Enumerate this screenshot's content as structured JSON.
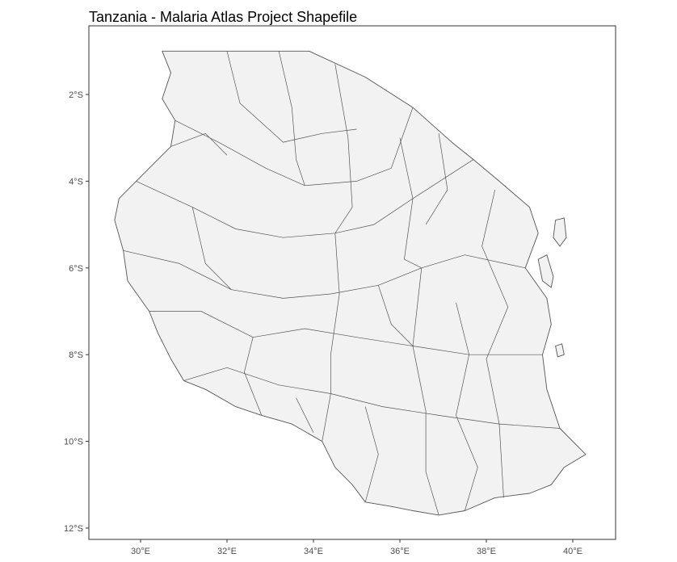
{
  "title": "Tanzania - Malaria Atlas Project Shapefile",
  "axes": {
    "x_ticks": [
      {
        "value": 30,
        "label": "30°E"
      },
      {
        "value": 32,
        "label": "32°E"
      },
      {
        "value": 34,
        "label": "34°E"
      },
      {
        "value": 36,
        "label": "36°E"
      },
      {
        "value": 38,
        "label": "38°E"
      },
      {
        "value": 40,
        "label": "40°E"
      }
    ],
    "y_ticks": [
      {
        "value": -2,
        "label": "2°S"
      },
      {
        "value": -4,
        "label": "4°S"
      },
      {
        "value": -6,
        "label": "6°S"
      },
      {
        "value": -8,
        "label": "8°S"
      },
      {
        "value": -10,
        "label": "10°S"
      },
      {
        "value": -12,
        "label": "12°S"
      }
    ],
    "xlim": [
      28.8,
      41.0
    ],
    "ylim": [
      -12.2,
      -0.4
    ]
  },
  "map": {
    "region": "Tanzania",
    "fill": "#f2f2f2",
    "stroke": "#555555",
    "panel_border": "#333333",
    "outline": [
      [
        30.5,
        -1.0
      ],
      [
        31.4,
        -1.0
      ],
      [
        33.9,
        -1.0
      ],
      [
        35.2,
        -1.6
      ],
      [
        36.3,
        -2.3
      ],
      [
        37.2,
        -3.1
      ],
      [
        37.7,
        -3.5
      ],
      [
        38.3,
        -4.0
      ],
      [
        39.0,
        -4.6
      ],
      [
        39.2,
        -5.2
      ],
      [
        38.9,
        -6.0
      ],
      [
        39.4,
        -6.7
      ],
      [
        39.5,
        -7.3
      ],
      [
        39.3,
        -8.0
      ],
      [
        39.4,
        -8.8
      ],
      [
        39.7,
        -9.7
      ],
      [
        40.3,
        -10.3
      ],
      [
        39.8,
        -10.6
      ],
      [
        39.5,
        -11.0
      ],
      [
        39.0,
        -11.2
      ],
      [
        38.2,
        -11.3
      ],
      [
        37.5,
        -11.6
      ],
      [
        36.9,
        -11.7
      ],
      [
        36.3,
        -11.6
      ],
      [
        35.8,
        -11.5
      ],
      [
        35.2,
        -11.4
      ],
      [
        34.9,
        -11.0
      ],
      [
        34.5,
        -10.6
      ],
      [
        34.2,
        -10.0
      ],
      [
        33.5,
        -9.6
      ],
      [
        32.8,
        -9.4
      ],
      [
        32.2,
        -9.2
      ],
      [
        31.5,
        -8.8
      ],
      [
        31.0,
        -8.6
      ],
      [
        30.7,
        -8.1
      ],
      [
        30.4,
        -7.5
      ],
      [
        30.2,
        -7.0
      ],
      [
        29.7,
        -6.3
      ],
      [
        29.6,
        -5.6
      ],
      [
        29.4,
        -4.9
      ],
      [
        29.5,
        -4.4
      ],
      [
        29.9,
        -4.0
      ],
      [
        30.3,
        -3.6
      ],
      [
        30.7,
        -3.2
      ],
      [
        30.8,
        -2.6
      ],
      [
        30.5,
        -2.1
      ],
      [
        30.7,
        -1.5
      ]
    ],
    "borders": [
      [
        [
          32.0,
          -1.0
        ],
        [
          32.3,
          -2.2
        ],
        [
          33.3,
          -3.1
        ],
        [
          34.2,
          -2.9
        ],
        [
          35.0,
          -2.8
        ]
      ],
      [
        [
          30.8,
          -2.6
        ],
        [
          31.8,
          -3.1
        ],
        [
          32.9,
          -3.7
        ],
        [
          33.8,
          -4.1
        ],
        [
          35.0,
          -4.0
        ],
        [
          35.8,
          -3.7
        ],
        [
          36.3,
          -2.3
        ]
      ],
      [
        [
          29.9,
          -4.0
        ],
        [
          31.2,
          -4.6
        ],
        [
          32.2,
          -5.1
        ],
        [
          33.3,
          -5.3
        ],
        [
          34.5,
          -5.2
        ],
        [
          35.4,
          -5.0
        ],
        [
          36.3,
          -4.4
        ],
        [
          37.7,
          -3.5
        ]
      ],
      [
        [
          29.6,
          -5.6
        ],
        [
          30.9,
          -5.9
        ],
        [
          32.1,
          -6.5
        ],
        [
          33.3,
          -6.7
        ],
        [
          34.4,
          -6.6
        ],
        [
          35.5,
          -6.4
        ],
        [
          36.5,
          -6.0
        ],
        [
          37.5,
          -5.7
        ],
        [
          38.9,
          -6.0
        ]
      ],
      [
        [
          30.2,
          -7.0
        ],
        [
          31.4,
          -7.0
        ],
        [
          32.6,
          -7.6
        ],
        [
          33.8,
          -7.4
        ],
        [
          35.0,
          -7.6
        ],
        [
          36.3,
          -7.8
        ],
        [
          37.6,
          -8.0
        ],
        [
          39.3,
          -8.0
        ]
      ],
      [
        [
          31.0,
          -8.6
        ],
        [
          32.0,
          -8.3
        ],
        [
          33.2,
          -8.7
        ],
        [
          34.4,
          -8.9
        ],
        [
          35.6,
          -9.2
        ],
        [
          36.9,
          -9.4
        ],
        [
          38.3,
          -9.6
        ],
        [
          39.7,
          -9.7
        ]
      ],
      [
        [
          33.2,
          -1.0
        ],
        [
          33.5,
          -2.3
        ],
        [
          33.6,
          -3.5
        ],
        [
          33.8,
          -4.1
        ]
      ],
      [
        [
          34.5,
          -1.3
        ],
        [
          34.8,
          -3.0
        ],
        [
          34.9,
          -4.6
        ],
        [
          34.5,
          -5.2
        ],
        [
          34.6,
          -6.6
        ],
        [
          34.4,
          -8.0
        ],
        [
          34.4,
          -8.9
        ],
        [
          34.2,
          -10.0
        ]
      ],
      [
        [
          36.0,
          -3.0
        ],
        [
          36.3,
          -4.4
        ],
        [
          36.1,
          -5.8
        ],
        [
          36.5,
          -6.0
        ],
        [
          36.3,
          -7.8
        ],
        [
          36.6,
          -9.3
        ],
        [
          36.6,
          -10.7
        ],
        [
          36.9,
          -11.7
        ]
      ],
      [
        [
          38.2,
          -4.2
        ],
        [
          37.9,
          -5.5
        ],
        [
          38.5,
          -6.9
        ],
        [
          38.0,
          -8.1
        ],
        [
          38.3,
          -9.6
        ],
        [
          38.4,
          -11.3
        ]
      ],
      [
        [
          31.2,
          -4.6
        ],
        [
          31.5,
          -5.9
        ],
        [
          32.1,
          -6.5
        ]
      ],
      [
        [
          32.6,
          -7.6
        ],
        [
          32.4,
          -8.4
        ],
        [
          32.8,
          -9.4
        ]
      ],
      [
        [
          35.5,
          -6.4
        ],
        [
          35.8,
          -7.3
        ],
        [
          36.3,
          -7.8
        ]
      ],
      [
        [
          37.3,
          -6.8
        ],
        [
          37.6,
          -8.0
        ],
        [
          37.3,
          -9.4
        ],
        [
          37.8,
          -10.6
        ],
        [
          37.5,
          -11.6
        ]
      ],
      [
        [
          30.7,
          -3.2
        ],
        [
          31.5,
          -2.9
        ],
        [
          32.0,
          -3.4
        ]
      ],
      [
        [
          35.2,
          -9.2
        ],
        [
          35.5,
          -10.3
        ],
        [
          35.2,
          -11.4
        ]
      ],
      [
        [
          33.6,
          -9.0
        ],
        [
          34.0,
          -9.8
        ]
      ],
      [
        [
          36.9,
          -2.9
        ],
        [
          37.1,
          -4.2
        ],
        [
          36.6,
          -5.0
        ]
      ]
    ],
    "islands": [
      [
        [
          39.6,
          -4.9
        ],
        [
          39.8,
          -4.85
        ],
        [
          39.85,
          -5.3
        ],
        [
          39.7,
          -5.5
        ],
        [
          39.55,
          -5.3
        ]
      ],
      [
        [
          39.2,
          -5.8
        ],
        [
          39.4,
          -5.7
        ],
        [
          39.55,
          -6.2
        ],
        [
          39.5,
          -6.45
        ],
        [
          39.3,
          -6.3
        ]
      ],
      [
        [
          39.6,
          -7.8
        ],
        [
          39.75,
          -7.75
        ],
        [
          39.8,
          -8.0
        ],
        [
          39.65,
          -8.05
        ]
      ]
    ]
  }
}
